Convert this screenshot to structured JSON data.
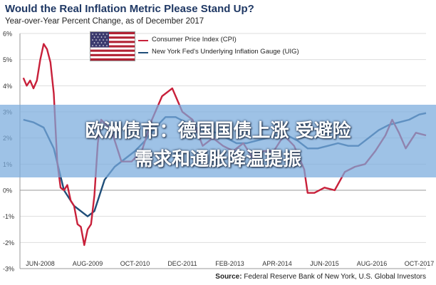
{
  "title": "Would the Real Inflation Metric Please Stand Up?",
  "subtitle": "Year-over-Year Percent Change, as of December 2017",
  "source_label": "Source:",
  "source_text": "Federal Reserve Bank of New York, U.S. Global Investors",
  "banner": {
    "line1": "欧洲债市：德国国债上涨 受避险",
    "line2": "需求和通胀降温提振"
  },
  "colors": {
    "cpi": "#c8203a",
    "uig": "#1f4e79",
    "banner": "#78aadc"
  },
  "flag_icon": "us-flag-icon",
  "chart_data": {
    "type": "line",
    "title": "Would the Real Inflation Metric Please Stand Up?",
    "subtitle": "Year-over-Year Percent Change, as of December 2017",
    "ylim": [
      -3,
      6
    ],
    "yticks": [
      -3,
      -2,
      -1,
      0,
      1,
      2,
      3,
      4,
      5,
      6
    ],
    "ytick_labels": [
      "-3%",
      "-2%",
      "-1%",
      "0%",
      "1%",
      "2%",
      "3%",
      "4%",
      "5%",
      "6%"
    ],
    "xlim": [
      "2007-12",
      "2017-12"
    ],
    "xticks": [
      "2008-06",
      "2009-08",
      "2010-10",
      "2011-12",
      "2013-02",
      "2014-04",
      "2015-06",
      "2016-08",
      "2017-10"
    ],
    "xtick_labels": [
      "JUN-2008",
      "AUG-2009",
      "OCT-2010",
      "DEC-2011",
      "FEB-2013",
      "APR-2014",
      "JUN-2015",
      "AUG-2016",
      "OCT-2017"
    ],
    "grid": "horizontal",
    "legend_position": "top-left",
    "series": [
      {
        "name": "Consumer Price Index (CPI)",
        "x": [
          "2008-01",
          "2008-02",
          "2008-03",
          "2008-04",
          "2008-05",
          "2008-06",
          "2008-07",
          "2008-08",
          "2008-09",
          "2008-10",
          "2008-11",
          "2008-12",
          "2009-01",
          "2009-02",
          "2009-03",
          "2009-04",
          "2009-05",
          "2009-06",
          "2009-07",
          "2009-08",
          "2009-09",
          "2009-10",
          "2009-11",
          "2009-12",
          "2010-03",
          "2010-06",
          "2010-09",
          "2010-12",
          "2011-03",
          "2011-06",
          "2011-09",
          "2011-12",
          "2012-03",
          "2012-06",
          "2012-09",
          "2012-12",
          "2013-03",
          "2013-06",
          "2013-09",
          "2013-12",
          "2014-03",
          "2014-06",
          "2014-09",
          "2014-12",
          "2015-01",
          "2015-03",
          "2015-06",
          "2015-09",
          "2015-12",
          "2016-03",
          "2016-06",
          "2016-09",
          "2016-12",
          "2017-02",
          "2017-04",
          "2017-06",
          "2017-09",
          "2017-12"
        ],
        "values": [
          4.3,
          4.0,
          4.2,
          3.9,
          4.2,
          5.0,
          5.6,
          5.4,
          4.9,
          3.7,
          1.1,
          0.1,
          0.0,
          0.2,
          -0.4,
          -0.6,
          -1.3,
          -1.4,
          -2.1,
          -1.5,
          -1.3,
          -0.2,
          1.8,
          2.7,
          2.3,
          1.1,
          1.1,
          1.5,
          2.7,
          3.6,
          3.9,
          3.0,
          2.7,
          1.7,
          2.0,
          1.7,
          1.5,
          1.8,
          1.2,
          1.5,
          1.5,
          2.1,
          1.7,
          0.8,
          -0.1,
          -0.1,
          0.1,
          0.0,
          0.7,
          0.9,
          1.0,
          1.5,
          2.1,
          2.7,
          2.2,
          1.6,
          2.2,
          2.1
        ]
      },
      {
        "name": "New York Fed's Underlying Inflation Gauge (UIG)",
        "x": [
          "2008-01",
          "2008-04",
          "2008-07",
          "2008-10",
          "2009-01",
          "2009-04",
          "2009-08",
          "2009-10",
          "2010-01",
          "2010-04",
          "2010-07",
          "2010-10",
          "2011-01",
          "2011-04",
          "2011-07",
          "2011-10",
          "2012-01",
          "2012-04",
          "2012-07",
          "2012-10",
          "2013-01",
          "2013-04",
          "2013-07",
          "2013-10",
          "2014-01",
          "2014-04",
          "2014-07",
          "2014-10",
          "2015-01",
          "2015-04",
          "2015-07",
          "2015-10",
          "2016-01",
          "2016-04",
          "2016-07",
          "2016-10",
          "2017-01",
          "2017-04",
          "2017-07",
          "2017-10",
          "2017-12"
        ],
        "values": [
          2.7,
          2.6,
          2.4,
          1.6,
          0.0,
          -0.6,
          -1.0,
          -0.8,
          0.4,
          0.9,
          1.2,
          1.5,
          1.9,
          2.4,
          2.8,
          2.8,
          2.6,
          2.4,
          2.3,
          2.2,
          2.0,
          1.8,
          1.8,
          1.9,
          2.0,
          2.1,
          2.1,
          1.9,
          1.6,
          1.6,
          1.7,
          1.8,
          1.7,
          1.7,
          2.0,
          2.3,
          2.5,
          2.6,
          2.7,
          2.9,
          2.95
        ]
      }
    ]
  }
}
